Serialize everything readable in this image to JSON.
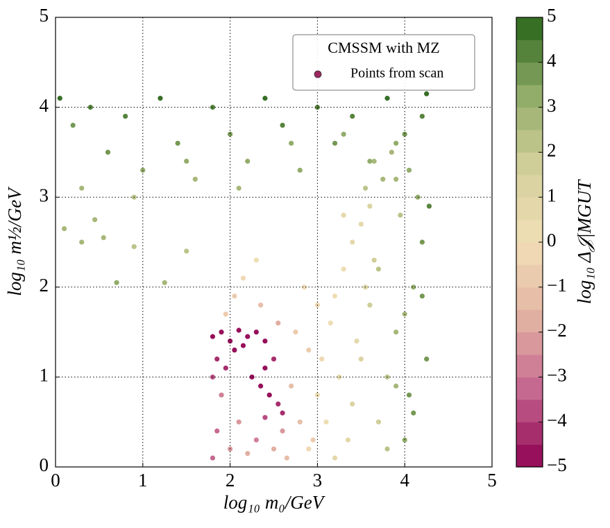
{
  "chart_data": {
    "type": "scatter",
    "xlabel": "log₁₀ m₀/GeV",
    "ylabel": "log₁₀ m½/GeV",
    "colorbar_label": "log₁₀ Δ𝒥|MGUT",
    "legend_title": "CMSSM with MZ",
    "legend": "upper right",
    "grid": true,
    "series": [
      {
        "name": "Points from scan",
        "color": "#9c2860"
      }
    ],
    "xlim": [
      0,
      5
    ],
    "xticks": [
      0,
      1,
      2,
      3,
      4,
      5
    ],
    "ylim": [
      0,
      5
    ],
    "yticks": [
      0,
      1,
      2,
      3,
      4,
      5
    ],
    "clim": [
      -5,
      5
    ],
    "cticks": [
      {
        "value": -5,
        "label": "−5"
      },
      {
        "value": -4,
        "label": "−4"
      },
      {
        "value": -3,
        "label": "−3"
      },
      {
        "value": -2,
        "label": "−2"
      },
      {
        "value": -1,
        "label": "−1"
      },
      0,
      1,
      2,
      3,
      4,
      5
    ],
    "color_levels": 20,
    "colormap": [
      "#8e0152",
      "#c4658f",
      "#e3b3a3",
      "#f1dfb6",
      "#d3d09b",
      "#8faa67",
      "#276419"
    ],
    "x": [
      0.05,
      0.2,
      0.4,
      0.6,
      0.8,
      1.0,
      1.2,
      1.4,
      1.6,
      1.8,
      2.0,
      2.2,
      2.4,
      2.6,
      2.8,
      3.0,
      3.2,
      3.4,
      3.6,
      3.8,
      4.0,
      4.2,
      0.3,
      0.9,
      1.5,
      2.1,
      2.7,
      3.3,
      3.9,
      4.25,
      0.1,
      0.3,
      0.55,
      0.7,
      0.9,
      1.25,
      1.5,
      0.45,
      1.8,
      1.9,
      2.0,
      2.1,
      2.2,
      2.3,
      2.4,
      2.5,
      1.85,
      1.95,
      2.05,
      2.25,
      2.35,
      2.45,
      2.55,
      2.15,
      2.4,
      2.6,
      1.8,
      1.85,
      1.9,
      2.0,
      2.1,
      2.2,
      2.3,
      2.5,
      2.6,
      2.7,
      2.8,
      2.9,
      1.95,
      2.05,
      2.15,
      2.35,
      2.55,
      2.75,
      2.85,
      2.3,
      2.4,
      2.65,
      1.8,
      2.95,
      2.9,
      3.0,
      3.05,
      3.1,
      3.15,
      3.2,
      3.25,
      3.3,
      3.35,
      3.4,
      3.45,
      3.5,
      3.55,
      3.6,
      3.0,
      3.2,
      3.4,
      3.3,
      3.5,
      3.65,
      3.7,
      3.8,
      3.9,
      4.0,
      4.1,
      4.2,
      4.25,
      3.75,
      3.85,
      3.95,
      4.05,
      4.15,
      3.6,
      3.7,
      3.8,
      3.9,
      4.0,
      4.1,
      4.2,
      3.65,
      3.55,
      4.28,
      3.9,
      4.05
    ],
    "y": [
      4.1,
      3.8,
      4.0,
      3.5,
      3.9,
      3.3,
      4.1,
      3.6,
      3.2,
      4.0,
      3.7,
      3.4,
      4.1,
      3.8,
      3.3,
      4.0,
      3.6,
      3.9,
      3.4,
      4.1,
      3.7,
      3.9,
      3.1,
      3.0,
      3.4,
      3.1,
      3.6,
      3.7,
      3.2,
      4.15,
      2.65,
      2.5,
      2.55,
      2.05,
      2.45,
      2.05,
      2.4,
      2.75,
      1.45,
      1.5,
      1.4,
      1.52,
      1.45,
      1.5,
      1.4,
      1.2,
      1.2,
      1.1,
      1.3,
      1.0,
      0.9,
      0.8,
      0.7,
      1.35,
      1.1,
      0.6,
      0.1,
      0.4,
      0.8,
      0.2,
      0.5,
      0.15,
      0.3,
      0.2,
      0.4,
      0.9,
      0.5,
      1.3,
      1.7,
      1.9,
      2.1,
      1.8,
      1.6,
      1.5,
      2.0,
      2.3,
      0.55,
      0.1,
      1.0,
      0.3,
      0.2,
      0.8,
      1.2,
      0.5,
      1.6,
      1.9,
      1.0,
      2.2,
      0.3,
      2.5,
      1.4,
      2.7,
      2.0,
      2.9,
      1.8,
      0.1,
      0.7,
      2.8,
      1.2,
      2.3,
      0.5,
      1.0,
      1.5,
      0.3,
      2.0,
      2.5,
      1.2,
      3.2,
      3.5,
      2.8,
      0.8,
      3.0,
      1.8,
      2.2,
      0.2,
      3.6,
      1.7,
      0.6,
      1.9,
      3.4,
      3.1,
      2.9,
      0.9,
      3.3
    ],
    "c": [
      4.5,
      3.8,
      4.2,
      3.5,
      4.0,
      3.2,
      4.6,
      3.6,
      2.9,
      4.1,
      3.7,
      3.3,
      4.5,
      4.0,
      3.1,
      4.3,
      3.5,
      4.2,
      3.0,
      4.6,
      3.8,
      4.4,
      2.6,
      2.4,
      3.0,
      2.7,
      3.4,
      3.2,
      2.8,
      4.7,
      2.5,
      2.8,
      2.6,
      3.0,
      2.4,
      2.7,
      2.2,
      2.9,
      -4.8,
      -4.9,
      -5,
      -4.7,
      -4.9,
      -4.8,
      -4.6,
      -4.5,
      -4.4,
      -4.3,
      -4.7,
      -4.6,
      -4.8,
      -4.9,
      -4.5,
      -5,
      -4.7,
      -4.4,
      -3.2,
      -3.5,
      -2.8,
      -2.5,
      -2.2,
      -2.0,
      -2.6,
      -1.8,
      -2.1,
      -1.5,
      -1.2,
      -0.8,
      -1.0,
      -0.6,
      -0.4,
      -1.3,
      -1.6,
      -0.9,
      -0.3,
      0.2,
      -3.8,
      -1.4,
      -3.9,
      -0.7,
      -0.3,
      0.1,
      -0.2,
      0.4,
      0.0,
      0.3,
      0.6,
      0.2,
      0.8,
      0.5,
      0.9,
      0.7,
      1.0,
      1.2,
      -0.4,
      0.6,
      1.1,
      0.9,
      1.3,
      1.5,
      1.8,
      2.2,
      2.6,
      3.2,
      3.0,
      3.5,
      3.8,
      2.5,
      2.8,
      2.4,
      3.6,
      3.4,
      1.7,
      2.0,
      2.3,
      3.1,
      2.7,
      3.9,
      3.7,
      2.6,
      2.1,
      4.0,
      2.9,
      3.2
    ]
  }
}
